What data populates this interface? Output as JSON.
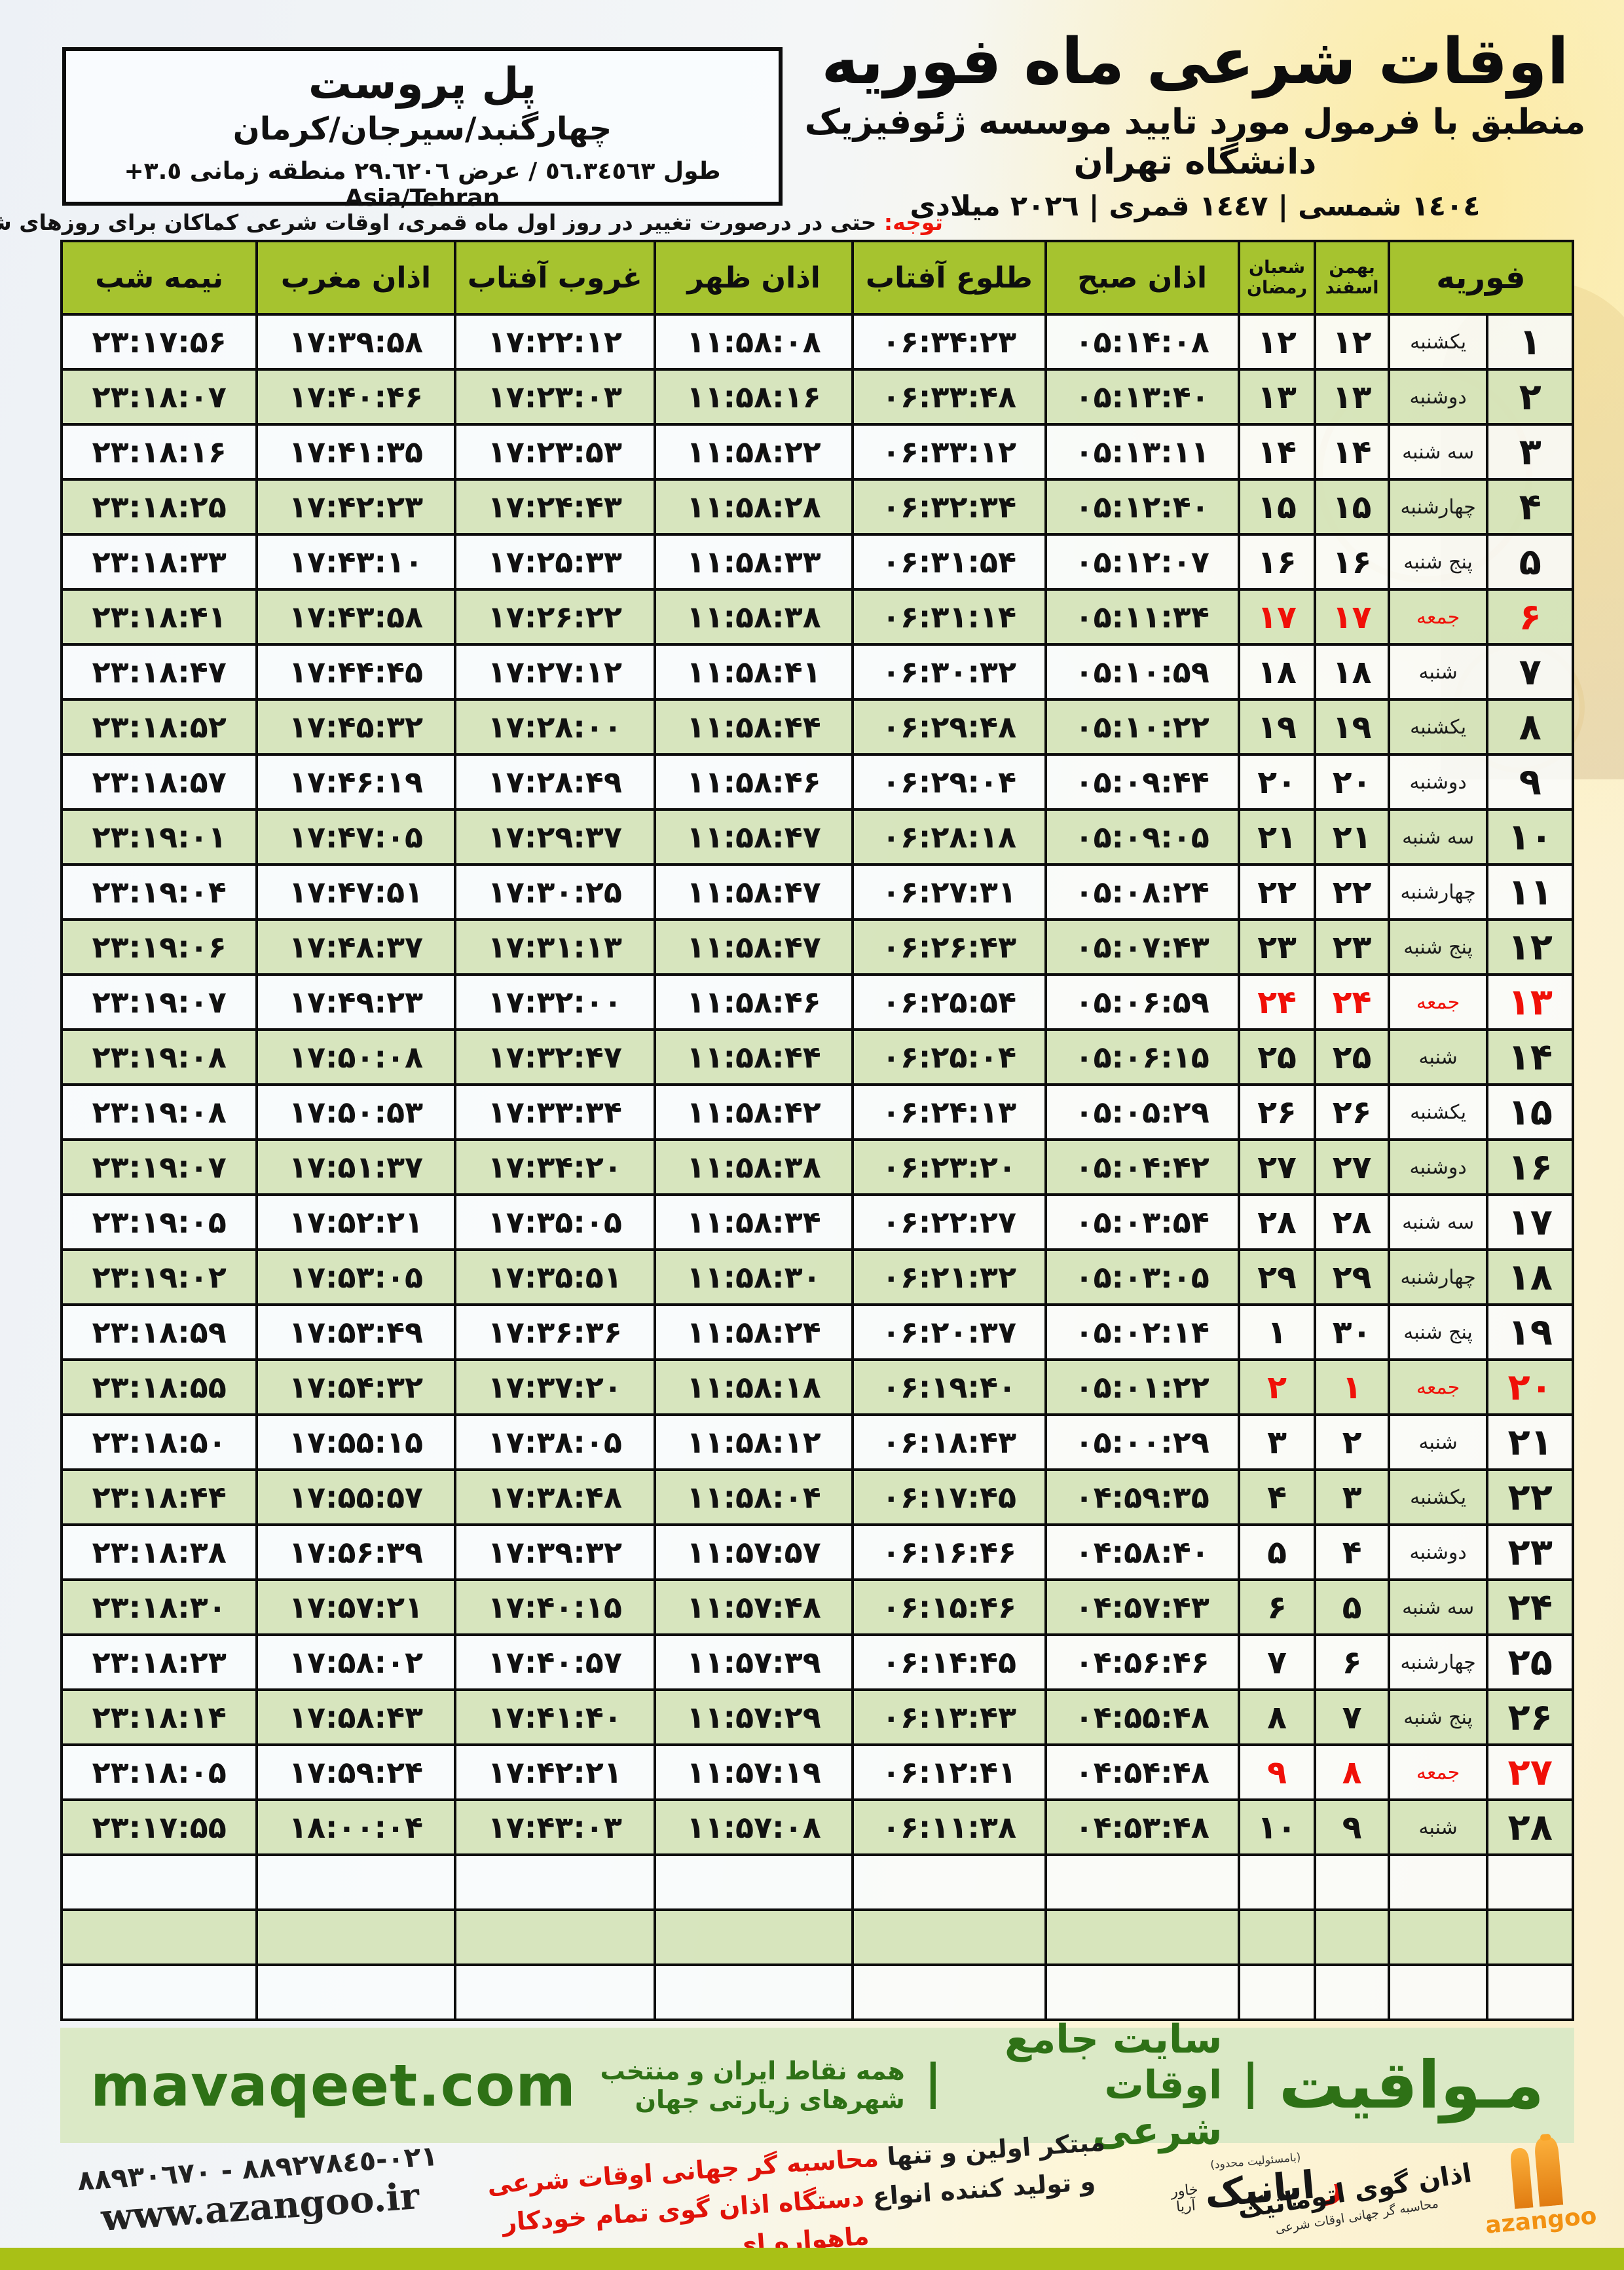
{
  "header": {
    "title": "اوقات شرعی ماه فوریه",
    "subtitle": "منطبق با فرمول مورد تایید موسسه ژئوفیزیک دانشگاه تهران",
    "date_line": "١٤٠٤ شمسی | ١٤٤٧ قمری | ٢٠٢٦ میلادی"
  },
  "location": {
    "name": "پل پروست",
    "region": "چهارگنبد/سیرجان/کرمان",
    "coords": "طول ٥٦.٣٤٥٦٣ / عرض ٢٩.٦٢٠٦ منطقه زمانی ٣.٥+ Asia/Tehran"
  },
  "note": {
    "label": "توجه:",
    "text": "حتی در درصورت تغییر در روز اول ماه قمری، اوقات شرعی کماکان برای روزهای شمسی و میلادی معتبر است."
  },
  "table": {
    "columns": {
      "february": "فوریه",
      "shamsi_top": "بهمن",
      "shamsi_bottom": "اسفند",
      "hijri_top": "شعبان",
      "hijri_bottom": "رمضان",
      "fajr": "اذان صبح",
      "sunrise": "طلوع آفتاب",
      "dhuhr": "اذان ظهر",
      "sunset": "غروب آفتاب",
      "maghrib": "اذان مغرب",
      "midnight": "نیمه شب"
    },
    "empty_row_count": 3,
    "rows": [
      {
        "day": "۱",
        "weekday": "یکشنبه",
        "shamsi": "۱۲",
        "hijri": "۱۲",
        "fajr": "۰۵:۱۴:۰۸",
        "sunrise": "۰۶:۳۴:۲۳",
        "dhuhr": "۱۱:۵۸:۰۸",
        "sunset": "۱۷:۲۲:۱۲",
        "maghrib": "۱۷:۳۹:۵۸",
        "midnight": "۲۳:۱۷:۵۶",
        "friday": false
      },
      {
        "day": "۲",
        "weekday": "دوشنبه",
        "shamsi": "۱۳",
        "hijri": "۱۳",
        "fajr": "۰۵:۱۳:۴۰",
        "sunrise": "۰۶:۳۳:۴۸",
        "dhuhr": "۱۱:۵۸:۱۶",
        "sunset": "۱۷:۲۳:۰۳",
        "maghrib": "۱۷:۴۰:۴۶",
        "midnight": "۲۳:۱۸:۰۷",
        "friday": false
      },
      {
        "day": "۳",
        "weekday": "سه شنبه",
        "shamsi": "۱۴",
        "hijri": "۱۴",
        "fajr": "۰۵:۱۳:۱۱",
        "sunrise": "۰۶:۳۳:۱۲",
        "dhuhr": "۱۱:۵۸:۲۲",
        "sunset": "۱۷:۲۳:۵۳",
        "maghrib": "۱۷:۴۱:۳۵",
        "midnight": "۲۳:۱۸:۱۶",
        "friday": false
      },
      {
        "day": "۴",
        "weekday": "چهارشنبه",
        "shamsi": "۱۵",
        "hijri": "۱۵",
        "fajr": "۰۵:۱۲:۴۰",
        "sunrise": "۰۶:۳۲:۳۴",
        "dhuhr": "۱۱:۵۸:۲۸",
        "sunset": "۱۷:۲۴:۴۳",
        "maghrib": "۱۷:۴۲:۲۳",
        "midnight": "۲۳:۱۸:۲۵",
        "friday": false
      },
      {
        "day": "۵",
        "weekday": "پنج شنبه",
        "shamsi": "۱۶",
        "hijri": "۱۶",
        "fajr": "۰۵:۱۲:۰۷",
        "sunrise": "۰۶:۳۱:۵۴",
        "dhuhr": "۱۱:۵۸:۳۳",
        "sunset": "۱۷:۲۵:۳۳",
        "maghrib": "۱۷:۴۳:۱۰",
        "midnight": "۲۳:۱۸:۳۳",
        "friday": false
      },
      {
        "day": "۶",
        "weekday": "جمعه",
        "shamsi": "۱۷",
        "hijri": "۱۷",
        "fajr": "۰۵:۱۱:۳۴",
        "sunrise": "۰۶:۳۱:۱۴",
        "dhuhr": "۱۱:۵۸:۳۸",
        "sunset": "۱۷:۲۶:۲۲",
        "maghrib": "۱۷:۴۳:۵۸",
        "midnight": "۲۳:۱۸:۴۱",
        "friday": true
      },
      {
        "day": "۷",
        "weekday": "شنبه",
        "shamsi": "۱۸",
        "hijri": "۱۸",
        "fajr": "۰۵:۱۰:۵۹",
        "sunrise": "۰۶:۳۰:۳۲",
        "dhuhr": "۱۱:۵۸:۴۱",
        "sunset": "۱۷:۲۷:۱۲",
        "maghrib": "۱۷:۴۴:۴۵",
        "midnight": "۲۳:۱۸:۴۷",
        "friday": false
      },
      {
        "day": "۸",
        "weekday": "یکشنبه",
        "shamsi": "۱۹",
        "hijri": "۱۹",
        "fajr": "۰۵:۱۰:۲۲",
        "sunrise": "۰۶:۲۹:۴۸",
        "dhuhr": "۱۱:۵۸:۴۴",
        "sunset": "۱۷:۲۸:۰۰",
        "maghrib": "۱۷:۴۵:۳۲",
        "midnight": "۲۳:۱۸:۵۲",
        "friday": false
      },
      {
        "day": "۹",
        "weekday": "دوشنبه",
        "shamsi": "۲۰",
        "hijri": "۲۰",
        "fajr": "۰۵:۰۹:۴۴",
        "sunrise": "۰۶:۲۹:۰۴",
        "dhuhr": "۱۱:۵۸:۴۶",
        "sunset": "۱۷:۲۸:۴۹",
        "maghrib": "۱۷:۴۶:۱۹",
        "midnight": "۲۳:۱۸:۵۷",
        "friday": false
      },
      {
        "day": "۱۰",
        "weekday": "سه شنبه",
        "shamsi": "۲۱",
        "hijri": "۲۱",
        "fajr": "۰۵:۰۹:۰۵",
        "sunrise": "۰۶:۲۸:۱۸",
        "dhuhr": "۱۱:۵۸:۴۷",
        "sunset": "۱۷:۲۹:۳۷",
        "maghrib": "۱۷:۴۷:۰۵",
        "midnight": "۲۳:۱۹:۰۱",
        "friday": false
      },
      {
        "day": "۱۱",
        "weekday": "چهارشنبه",
        "shamsi": "۲۲",
        "hijri": "۲۲",
        "fajr": "۰۵:۰۸:۲۴",
        "sunrise": "۰۶:۲۷:۳۱",
        "dhuhr": "۱۱:۵۸:۴۷",
        "sunset": "۱۷:۳۰:۲۵",
        "maghrib": "۱۷:۴۷:۵۱",
        "midnight": "۲۳:۱۹:۰۴",
        "friday": false
      },
      {
        "day": "۱۲",
        "weekday": "پنج شنبه",
        "shamsi": "۲۳",
        "hijri": "۲۳",
        "fajr": "۰۵:۰۷:۴۳",
        "sunrise": "۰۶:۲۶:۴۳",
        "dhuhr": "۱۱:۵۸:۴۷",
        "sunset": "۱۷:۳۱:۱۳",
        "maghrib": "۱۷:۴۸:۳۷",
        "midnight": "۲۳:۱۹:۰۶",
        "friday": false
      },
      {
        "day": "۱۳",
        "weekday": "جمعه",
        "shamsi": "۲۴",
        "hijri": "۲۴",
        "fajr": "۰۵:۰۶:۵۹",
        "sunrise": "۰۶:۲۵:۵۴",
        "dhuhr": "۱۱:۵۸:۴۶",
        "sunset": "۱۷:۳۲:۰۰",
        "maghrib": "۱۷:۴۹:۲۳",
        "midnight": "۲۳:۱۹:۰۷",
        "friday": true
      },
      {
        "day": "۱۴",
        "weekday": "شنبه",
        "shamsi": "۲۵",
        "hijri": "۲۵",
        "fajr": "۰۵:۰۶:۱۵",
        "sunrise": "۰۶:۲۵:۰۴",
        "dhuhr": "۱۱:۵۸:۴۴",
        "sunset": "۱۷:۳۲:۴۷",
        "maghrib": "۱۷:۵۰:۰۸",
        "midnight": "۲۳:۱۹:۰۸",
        "friday": false
      },
      {
        "day": "۱۵",
        "weekday": "یکشنبه",
        "shamsi": "۲۶",
        "hijri": "۲۶",
        "fajr": "۰۵:۰۵:۲۹",
        "sunrise": "۰۶:۲۴:۱۳",
        "dhuhr": "۱۱:۵۸:۴۲",
        "sunset": "۱۷:۳۳:۳۴",
        "maghrib": "۱۷:۵۰:۵۳",
        "midnight": "۲۳:۱۹:۰۸",
        "friday": false
      },
      {
        "day": "۱۶",
        "weekday": "دوشنبه",
        "shamsi": "۲۷",
        "hijri": "۲۷",
        "fajr": "۰۵:۰۴:۴۲",
        "sunrise": "۰۶:۲۳:۲۰",
        "dhuhr": "۱۱:۵۸:۳۸",
        "sunset": "۱۷:۳۴:۲۰",
        "maghrib": "۱۷:۵۱:۳۷",
        "midnight": "۲۳:۱۹:۰۷",
        "friday": false
      },
      {
        "day": "۱۷",
        "weekday": "سه شنبه",
        "shamsi": "۲۸",
        "hijri": "۲۸",
        "fajr": "۰۵:۰۳:۵۴",
        "sunrise": "۰۶:۲۲:۲۷",
        "dhuhr": "۱۱:۵۸:۳۴",
        "sunset": "۱۷:۳۵:۰۵",
        "maghrib": "۱۷:۵۲:۲۱",
        "midnight": "۲۳:۱۹:۰۵",
        "friday": false
      },
      {
        "day": "۱۸",
        "weekday": "چهارشنبه",
        "shamsi": "۲۹",
        "hijri": "۲۹",
        "fajr": "۰۵:۰۳:۰۵",
        "sunrise": "۰۶:۲۱:۳۲",
        "dhuhr": "۱۱:۵۸:۳۰",
        "sunset": "۱۷:۳۵:۵۱",
        "maghrib": "۱۷:۵۳:۰۵",
        "midnight": "۲۳:۱۹:۰۲",
        "friday": false
      },
      {
        "day": "۱۹",
        "weekday": "پنج شنبه",
        "shamsi": "۳۰",
        "hijri": "۱",
        "fajr": "۰۵:۰۲:۱۴",
        "sunrise": "۰۶:۲۰:۳۷",
        "dhuhr": "۱۱:۵۸:۲۴",
        "sunset": "۱۷:۳۶:۳۶",
        "maghrib": "۱۷:۵۳:۴۹",
        "midnight": "۲۳:۱۸:۵۹",
        "friday": false
      },
      {
        "day": "۲۰",
        "weekday": "جمعه",
        "shamsi": "۱",
        "hijri": "۲",
        "fajr": "۰۵:۰۱:۲۲",
        "sunrise": "۰۶:۱۹:۴۰",
        "dhuhr": "۱۱:۵۸:۱۸",
        "sunset": "۱۷:۳۷:۲۰",
        "maghrib": "۱۷:۵۴:۳۲",
        "midnight": "۲۳:۱۸:۵۵",
        "friday": true
      },
      {
        "day": "۲۱",
        "weekday": "شنبه",
        "shamsi": "۲",
        "hijri": "۳",
        "fajr": "۰۵:۰۰:۲۹",
        "sunrise": "۰۶:۱۸:۴۳",
        "dhuhr": "۱۱:۵۸:۱۲",
        "sunset": "۱۷:۳۸:۰۵",
        "maghrib": "۱۷:۵۵:۱۵",
        "midnight": "۲۳:۱۸:۵۰",
        "friday": false
      },
      {
        "day": "۲۲",
        "weekday": "یکشنبه",
        "shamsi": "۳",
        "hijri": "۴",
        "fajr": "۰۴:۵۹:۳۵",
        "sunrise": "۰۶:۱۷:۴۵",
        "dhuhr": "۱۱:۵۸:۰۴",
        "sunset": "۱۷:۳۸:۴۸",
        "maghrib": "۱۷:۵۵:۵۷",
        "midnight": "۲۳:۱۸:۴۴",
        "friday": false
      },
      {
        "day": "۲۳",
        "weekday": "دوشنبه",
        "shamsi": "۴",
        "hijri": "۵",
        "fajr": "۰۴:۵۸:۴۰",
        "sunrise": "۰۶:۱۶:۴۶",
        "dhuhr": "۱۱:۵۷:۵۷",
        "sunset": "۱۷:۳۹:۳۲",
        "maghrib": "۱۷:۵۶:۳۹",
        "midnight": "۲۳:۱۸:۳۸",
        "friday": false
      },
      {
        "day": "۲۴",
        "weekday": "سه شنبه",
        "shamsi": "۵",
        "hijri": "۶",
        "fajr": "۰۴:۵۷:۴۳",
        "sunrise": "۰۶:۱۵:۴۶",
        "dhuhr": "۱۱:۵۷:۴۸",
        "sunset": "۱۷:۴۰:۱۵",
        "maghrib": "۱۷:۵۷:۲۱",
        "midnight": "۲۳:۱۸:۳۰",
        "friday": false
      },
      {
        "day": "۲۵",
        "weekday": "چهارشنبه",
        "shamsi": "۶",
        "hijri": "۷",
        "fajr": "۰۴:۵۶:۴۶",
        "sunrise": "۰۶:۱۴:۴۵",
        "dhuhr": "۱۱:۵۷:۳۹",
        "sunset": "۱۷:۴۰:۵۷",
        "maghrib": "۱۷:۵۸:۰۲",
        "midnight": "۲۳:۱۸:۲۳",
        "friday": false
      },
      {
        "day": "۲۶",
        "weekday": "پنج شنبه",
        "shamsi": "۷",
        "hijri": "۸",
        "fajr": "۰۴:۵۵:۴۸",
        "sunrise": "۰۶:۱۳:۴۳",
        "dhuhr": "۱۱:۵۷:۲۹",
        "sunset": "۱۷:۴۱:۴۰",
        "maghrib": "۱۷:۵۸:۴۳",
        "midnight": "۲۳:۱۸:۱۴",
        "friday": false
      },
      {
        "day": "۲۷",
        "weekday": "جمعه",
        "shamsi": "۸",
        "hijri": "۹",
        "fajr": "۰۴:۵۴:۴۸",
        "sunrise": "۰۶:۱۲:۴۱",
        "dhuhr": "۱۱:۵۷:۱۹",
        "sunset": "۱۷:۴۲:۲۱",
        "maghrib": "۱۷:۵۹:۲۴",
        "midnight": "۲۳:۱۸:۰۵",
        "friday": true
      },
      {
        "day": "۲۸",
        "weekday": "شنبه",
        "shamsi": "۹",
        "hijri": "۱۰",
        "fajr": "۰۴:۵۳:۴۸",
        "sunrise": "۰۶:۱۱:۳۸",
        "dhuhr": "۱۱:۵۷:۰۸",
        "sunset": "۱۷:۴۳:۰۳",
        "maghrib": "۱۸:۰۰:۰۴",
        "midnight": "۲۳:۱۷:۵۵",
        "friday": false
      }
    ]
  },
  "footer": {
    "brand": "مـواقیت",
    "separator": "|",
    "tagline1": "سایت جامع اوقات شرعی",
    "tagline2": "همه نقاط ایران و منتخب شهرهای زیارتی جهان",
    "url": "mavaqeet.com"
  },
  "bottom": {
    "phones": "٠٢١-٨٨٩٢٧٨٤٥ - ٨٨٩٣٠٦٧٠",
    "website": "www.azangoo.ir",
    "line1_black": "مبتکر اولین و تنها",
    "line1_red": "محاسبه گر جهانی اوقات شرعی",
    "line2_black": "و تولید کننده انواع",
    "line2_red": "دستگاه اذان گوی تمام خودکار ماهواره ای",
    "rayanik_mark": "ر",
    "rayanik_name": "ایانیک",
    "rayanik_sub_top": "خاور",
    "rayanik_sub_bottom": "آریا",
    "rayanik_note": "(بامسئولیت محدود)",
    "azangoo_title": "اذان گوی اتوماتیک",
    "azangoo_tagline": "محاسبه گر جهانی اوقات شرعی",
    "azangoo_latin": "azangoo"
  },
  "colors": {
    "header_green": "#a6c32f",
    "row_green": "#d5e4bb",
    "friday_red": "#f01008",
    "footer_bg_green": "#dbe9c6",
    "footer_text_green": "#2e7116",
    "bottom_strip_green": "#a9c016",
    "azangoo_orange": "#f29111"
  }
}
